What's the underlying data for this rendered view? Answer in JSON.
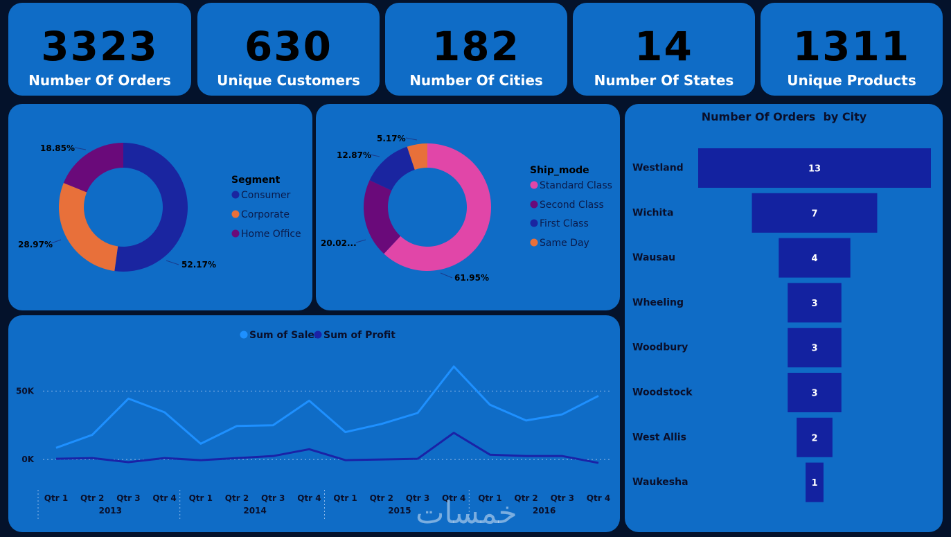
{
  "kpis": [
    {
      "value": "3323",
      "label": "Number Of Orders"
    },
    {
      "value": "630",
      "label": "Unique Customers"
    },
    {
      "value": "182",
      "label": "Number Of Cities"
    },
    {
      "value": "14",
      "label": "Number Of States"
    },
    {
      "value": "1311",
      "label": "Unique Products"
    }
  ],
  "colors": {
    "card": "#0f6cc6",
    "background": "#04122b",
    "consumer": "#1a25a0",
    "corporate": "#e8703a",
    "home_office": "#6a0a7a",
    "standard_class": "#e146a8",
    "sales_line": "#1e90ff",
    "profit_line": "#1a22a6",
    "funnel_bar": "#1322a0"
  },
  "watermark": "خمسات",
  "chart_data": [
    {
      "type": "pie",
      "legend_title": "Segment",
      "legend_position": "right",
      "categories": [
        "Consumer",
        "Corporate",
        "Home Office"
      ],
      "values": [
        52.17,
        28.97,
        18.85
      ],
      "data_labels": [
        "52.17%",
        "28.97%",
        "18.85%"
      ],
      "colors": [
        "#1a25a0",
        "#e8703a",
        "#6a0a7a"
      ]
    },
    {
      "type": "pie",
      "legend_title": "Ship_mode",
      "legend_position": "right",
      "categories": [
        "Standard Class",
        "Second Class",
        "First Class",
        "Same Day"
      ],
      "values": [
        61.95,
        20.02,
        12.87,
        5.17
      ],
      "data_labels": [
        "61.95%",
        "20.02...",
        "12.87%",
        "5.17%"
      ],
      "colors": [
        "#e146a8",
        "#6a0a7a",
        "#1a25a0",
        "#e8703a"
      ]
    },
    {
      "type": "bar",
      "title": "Number Of Orders  by City",
      "categories": [
        "Westland",
        "Wichita",
        "Wausau",
        "Wheeling",
        "Woodbury",
        "Woodstock",
        "West Allis",
        "Waukesha"
      ],
      "values": [
        13,
        7,
        4,
        3,
        3,
        3,
        2,
        1
      ]
    },
    {
      "type": "line",
      "legend_position": "top",
      "quarters": [
        "Qtr 1",
        "Qtr 2",
        "Qtr 3",
        "Qtr 4",
        "Qtr 1",
        "Qtr 2",
        "Qtr 3",
        "Qtr 4",
        "Qtr 1",
        "Qtr 2",
        "Qtr 3",
        "Qtr 4",
        "Qtr 1",
        "Qtr 2",
        "Qtr 3",
        "Qtr 4"
      ],
      "years": [
        "2013",
        "2014",
        "2015",
        "2016"
      ],
      "yticks": [
        {
          "value": 0,
          "label": "0K"
        },
        {
          "value": 50000,
          "label": "50K"
        }
      ],
      "ylim": [
        -4000,
        72000
      ],
      "series": [
        {
          "name": "Sum of Sales",
          "color": "#1e90ff",
          "values": [
            8500,
            18000,
            44500,
            34500,
            11500,
            24500,
            25000,
            43000,
            20000,
            26000,
            34000,
            68000,
            40000,
            28500,
            33000,
            46500
          ]
        },
        {
          "name": "Sum of Profit",
          "color": "#1a22a6",
          "values": [
            500,
            1000,
            -2000,
            1000,
            -500,
            1000,
            2500,
            7500,
            -500,
            0,
            500,
            19500,
            3500,
            2500,
            2500,
            -2500
          ]
        }
      ]
    }
  ]
}
